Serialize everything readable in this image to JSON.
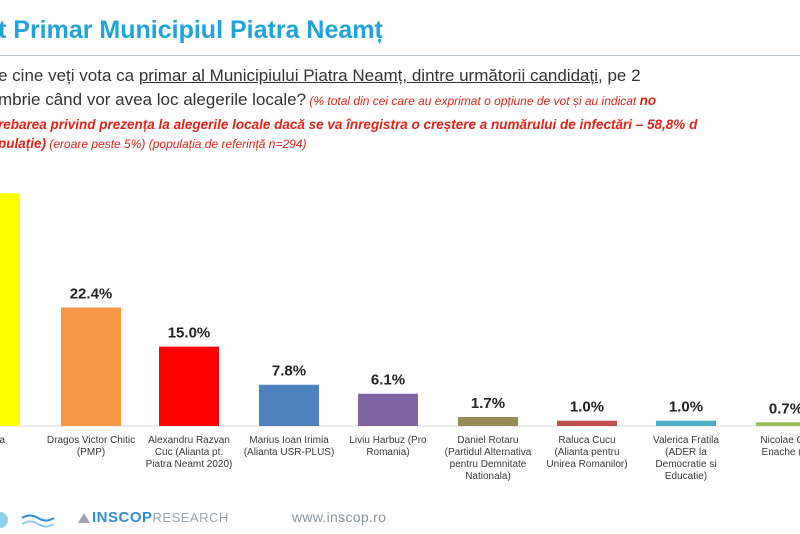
{
  "header": {
    "title": "t Primar Municipiul Piatra Neamț",
    "question_line1_a": "e cine veți vota ca ",
    "question_line1_u": "primar al Municipiului Piatra Neamț, dintre următorii candidați",
    "question_line1_b": ", pe 2",
    "question_line2": "mbrie când vor avea loc alegerile locale?",
    "note_line2": " (% total din cei care au exprimat o opțiune de vot și au indicat ",
    "note_line2_bold": "no",
    "note_line3": "rebarea privind prezența la alegerile locale dacă se va înregistra o creștere a numărului de infectări – 58,8% d",
    "note_line4_bold": "pulație)",
    "note_line4": " (eroare peste 5%) (populația de referință n=294)"
  },
  "chart_data": {
    "type": "bar",
    "categories": [
      "abelea\n)",
      "Dragos Victor Chitic\n(PMP)",
      "Alexandru Razvan\nCuc (Alianta pt.\nPiatra Neamt 2020)",
      "Marius Ioan Irimia\n(Alianta USR-PLUS)",
      "Liviu Harbuz (Pro\nRomania)",
      "Daniel Rotaru\n(Partidul Alternativa\npentru Demnitate\nNationala)",
      "Raluca Cucu\n(Alianta pentru\nUnirea Romanilor)",
      "Valerica Fratila\n(ADER la\nDemocratie si\nEducatie)",
      "Nicolae Cip\nEnache (Al"
    ],
    "values": [
      44.0,
      22.4,
      15.0,
      7.8,
      6.1,
      1.7,
      1.0,
      1.0,
      0.7
    ],
    "value_labels": [
      "%",
      "22.4%",
      "15.0%",
      "7.8%",
      "6.1%",
      "1.7%",
      "1.0%",
      "1.0%",
      "0.7%"
    ],
    "colors": [
      "#ffff00",
      "#f79646",
      "#ff0000",
      "#4f81bd",
      "#8064a2",
      "#948a54",
      "#c0504d",
      "#4bacc6",
      "#9bbb59"
    ],
    "ylim": [
      0,
      45
    ]
  },
  "footer": {
    "brand": "INSCOP",
    "brand_suffix": "RESEARCH",
    "website": "www.inscop.ro"
  }
}
